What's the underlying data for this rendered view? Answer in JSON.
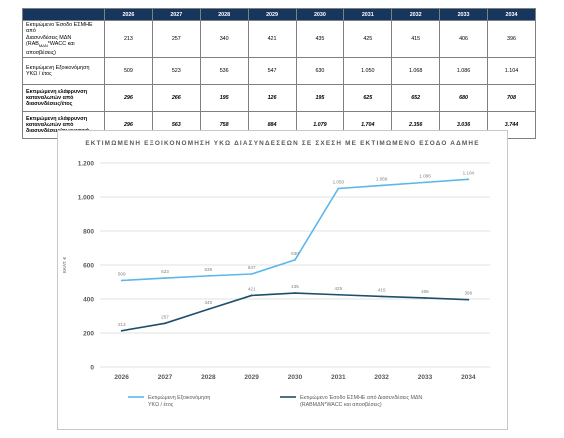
{
  "table": {
    "years": [
      "2026",
      "2027",
      "2028",
      "2029",
      "2030",
      "2031",
      "2032",
      "2033",
      "2034"
    ],
    "rows": [
      {
        "label_lines": [
          "Εκτιμώμενο Έσοδο ΕΣΜΗΕ από",
          "Διασυνδέσεις ΜΔΝ",
          "(RAB",
          "ΜΔΝ",
          "*WACC και αποσβέσεις)"
        ],
        "values": [
          "213",
          "257",
          "340",
          "421",
          "435",
          "425",
          "415",
          "406",
          "396"
        ],
        "bold": false
      },
      {
        "label_lines": [
          "Εκτιμώμενη Εξοικονόμηση",
          "ΥΚΩ / έτος"
        ],
        "values": [
          "509",
          "523",
          "536",
          "547",
          "630",
          "1.050",
          "1.068",
          "1.086",
          "1.104"
        ],
        "bold": false
      },
      {
        "label_lines": [
          "Εκτιμώμενη ελάφρυνση",
          "καταναλωτών από",
          "διασυνδέσεις/έτος"
        ],
        "values": [
          "296",
          "266",
          "195",
          "126",
          "195",
          "625",
          "652",
          "680",
          "708"
        ],
        "bold": true
      },
      {
        "label_lines": [
          "Εκτιμώμενη ελάφρυνση",
          "καταναλωτών από",
          "διασυνδέσεις/σωρευτικά"
        ],
        "values": [
          "296",
          "563",
          "758",
          "884",
          "1.079",
          "1.704",
          "2.356",
          "3.036",
          "3.744"
        ],
        "bold": true
      }
    ]
  },
  "chart_data": {
    "type": "line",
    "title": "ΕΚΤΙΜΩΜΕΝΗ ΕΞΟΙΚΟΝΟΜΗΣΗ ΥΚΩ ΔΙΑΣΥΝΔΕΣΕΩΝ ΣΕ ΣΧΕΣΗ ΜΕ ΕΚΤΙΜΩΜΕΝΟ ΕΣΟΔΟ ΑΔΜΗΕ",
    "ylabel": "ΕΚΑΤ. €",
    "ylim": [
      0,
      1200
    ],
    "ytick_labels": [
      "0",
      "200",
      "400",
      "600",
      "800",
      "1.000",
      "1.200"
    ],
    "ytick_values": [
      0,
      200,
      400,
      600,
      800,
      1000,
      1200
    ],
    "grid": true,
    "legend_position": "bottom",
    "categories": [
      "2026",
      "2027",
      "2028",
      "2029",
      "2030",
      "2031",
      "2032",
      "2033",
      "2034"
    ],
    "series": [
      {
        "name": "Εκτιμώμενη Εξοικονόμηση ΥΚΩ / έτος",
        "legend_lines": [
          "Εκτιμώμενη Εξοικονόμηση",
          "ΥΚΩ / έτος"
        ],
        "color": "#5bb8e6",
        "values": [
          509,
          523,
          536,
          547,
          630,
          1050,
          1068,
          1086,
          1104
        ],
        "labels": [
          "509",
          "523",
          "536",
          "547",
          "630",
          "1.050",
          "1.068",
          "1.086",
          "1.104"
        ]
      },
      {
        "name": "Εκτιμώμενο Έσοδο ΕΣΜΗΕ από Διασυνδέσεις ΜΔΝ (RABΜΔΝ*WACC και αποσβέσεις)",
        "legend_lines": [
          "Εκτιμώμενο Έσοδο ΕΣΜΗΕ από Διασυνδέσεις ΜΔΝ",
          "(RABΜΔΝ*WACC και αποσβέσεις)"
        ],
        "color": "#1f4e6b",
        "values": [
          213,
          257,
          340,
          421,
          435,
          425,
          415,
          406,
          396
        ],
        "labels": [
          "213",
          "257",
          "340",
          "421",
          "435",
          "425",
          "415",
          "406",
          "396"
        ]
      }
    ]
  },
  "colors": {
    "header_bg": "#17365d",
    "grid": "#d9d9d9",
    "axis_text": "#595959"
  }
}
